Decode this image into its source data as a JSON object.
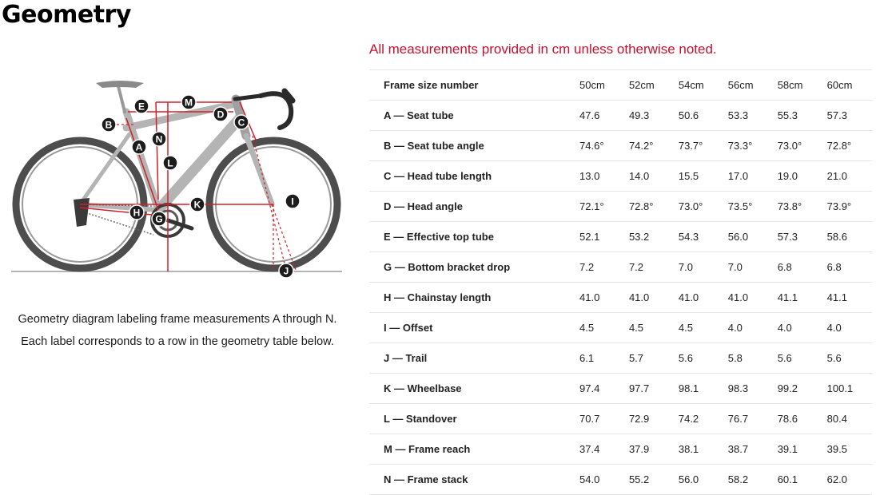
{
  "page": {
    "title": "Geometry",
    "note": "All measurements provided in cm unless otherwise noted."
  },
  "diagram": {
    "caption_line1": "Geometry diagram labeling frame measurements A through N.",
    "caption_line2": "Each label corresponds to a row in the geometry table below.",
    "markers": [
      "A",
      "B",
      "C",
      "D",
      "E",
      "G",
      "H",
      "I",
      "J",
      "K",
      "L",
      "M",
      "N"
    ]
  },
  "colors": {
    "accent": "#c8102e",
    "measure_line": "#d0202a",
    "frame": "#b4b4b4",
    "marker_bg": "#1c1c1c"
  },
  "table": {
    "header_label": "Frame size number",
    "sizes": [
      "50cm",
      "52cm",
      "54cm",
      "56cm",
      "58cm",
      "60cm"
    ],
    "rows": [
      {
        "label": "A — Seat tube",
        "values": [
          "47.6",
          "49.3",
          "50.6",
          "53.3",
          "55.3",
          "57.3"
        ]
      },
      {
        "label": "B — Seat tube angle",
        "values": [
          "74.6°",
          "74.2°",
          "73.7°",
          "73.3°",
          "73.0°",
          "72.8°"
        ]
      },
      {
        "label": "C — Head tube length",
        "values": [
          "13.0",
          "14.0",
          "15.5",
          "17.0",
          "19.0",
          "21.0"
        ]
      },
      {
        "label": "D — Head angle",
        "values": [
          "72.1°",
          "72.8°",
          "73.0°",
          "73.5°",
          "73.8°",
          "73.9°"
        ]
      },
      {
        "label": "E — Effective top tube",
        "values": [
          "52.1",
          "53.2",
          "54.3",
          "56.0",
          "57.3",
          "58.6"
        ]
      },
      {
        "label": "G — Bottom bracket drop",
        "values": [
          "7.2",
          "7.2",
          "7.0",
          "7.0",
          "6.8",
          "6.8"
        ]
      },
      {
        "label": "H — Chainstay length",
        "values": [
          "41.0",
          "41.0",
          "41.0",
          "41.0",
          "41.1",
          "41.1"
        ]
      },
      {
        "label": "I — Offset",
        "values": [
          "4.5",
          "4.5",
          "4.5",
          "4.0",
          "4.0",
          "4.0"
        ]
      },
      {
        "label": "J — Trail",
        "values": [
          "6.1",
          "5.7",
          "5.6",
          "5.8",
          "5.6",
          "5.6"
        ]
      },
      {
        "label": "K — Wheelbase",
        "values": [
          "97.4",
          "97.7",
          "98.1",
          "98.3",
          "99.2",
          "100.1"
        ]
      },
      {
        "label": "L — Standover",
        "values": [
          "70.7",
          "72.9",
          "74.2",
          "76.7",
          "78.6",
          "80.4"
        ]
      },
      {
        "label": "M — Frame reach",
        "values": [
          "37.4",
          "37.9",
          "38.1",
          "38.7",
          "39.1",
          "39.5"
        ]
      },
      {
        "label": "N — Frame stack",
        "values": [
          "54.0",
          "55.2",
          "56.0",
          "58.2",
          "60.1",
          "62.0"
        ]
      }
    ]
  }
}
